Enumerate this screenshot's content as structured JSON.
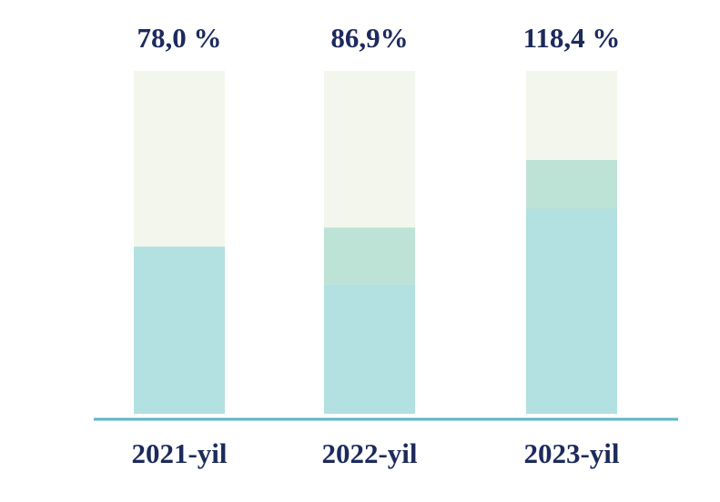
{
  "chart_data": {
    "type": "stacked_bar",
    "categories": [
      "2021-yil",
      "2022-yil",
      "2023-yil"
    ],
    "series": [
      {
        "color": "#b3e0e1",
        "values": [
          78.0,
          60.4,
          95.7
        ]
      },
      {
        "color": "#bde2d6",
        "values": [
          0,
          26.5,
          22.7
        ]
      }
    ],
    "totals": {
      "values": [
        78.0,
        86.9,
        118.4
      ],
      "value_labels": [
        "78,0 %",
        "86,9%",
        "118,4 %"
      ]
    },
    "track_color": "#f3f6ec",
    "axis_color": "#5ab6c6",
    "ylim": [
      0,
      160
    ]
  }
}
